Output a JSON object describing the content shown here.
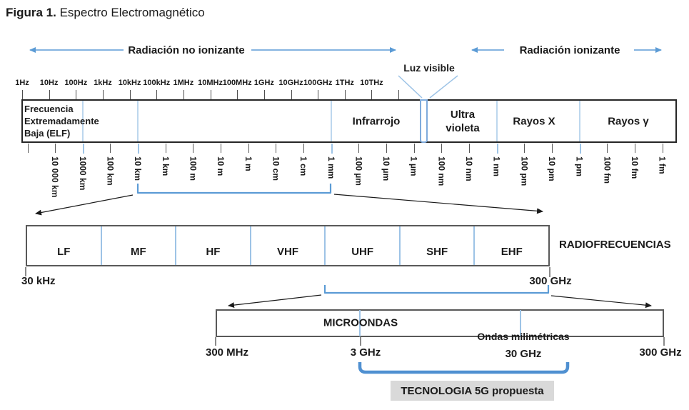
{
  "title": {
    "bold": "Figura 1.",
    "rest": " Espectro Electromagnético"
  },
  "arrows": {
    "non_ionizing": "Radiación no ionizante",
    "ionizing": "Radiación ionizante",
    "visible_light": "Luz visible"
  },
  "frequency_axis": {
    "labels": [
      "1Hz",
      "10Hz",
      "100Hz",
      "1kHz",
      "10kHz",
      "100kHz",
      "1MHz",
      "10MHz",
      "100MHz",
      "1GHz",
      "10GHz",
      "100GHz",
      "1THz",
      "10THz",
      ""
    ]
  },
  "spectrum_bar": {
    "elf_label": "Frecuencia\nExtremadamente\nBaja (ELF)",
    "infrared_label": "Infrarrojo",
    "uv_label": "Ultra\nvioleta",
    "xray_label": "Rayos X",
    "gamma_label": "Rayos γ"
  },
  "wavelength_axis": {
    "ticks": [
      {
        "label": "",
        "highlight": false
      },
      {
        "label": "10 000 km",
        "highlight": false
      },
      {
        "label": "1000 km",
        "highlight": true
      },
      {
        "label": "100 km",
        "highlight": false
      },
      {
        "label": "10 km",
        "highlight": true
      },
      {
        "label": "1 km",
        "highlight": false
      },
      {
        "label": "100 m",
        "highlight": false
      },
      {
        "label": "10 m",
        "highlight": false
      },
      {
        "label": "1 m",
        "highlight": false
      },
      {
        "label": "10 cm",
        "highlight": false
      },
      {
        "label": "1 cm",
        "highlight": false
      },
      {
        "label": "1 mm",
        "highlight": true
      },
      {
        "label": "100 µm",
        "highlight": false
      },
      {
        "label": "10 µm",
        "highlight": false
      },
      {
        "label": "1 µm",
        "highlight": false
      },
      {
        "label": "100 nm",
        "highlight": false
      },
      {
        "label": "10 nm",
        "highlight": false
      },
      {
        "label": "1 nm",
        "highlight": true
      },
      {
        "label": "100 pm",
        "highlight": false
      },
      {
        "label": "10 pm",
        "highlight": false
      },
      {
        "label": "1 pm",
        "highlight": true
      },
      {
        "label": "100 fm",
        "highlight": false
      },
      {
        "label": "10 fm",
        "highlight": false
      },
      {
        "label": "1 fm",
        "highlight": false
      }
    ]
  },
  "radio_bar": {
    "title": "RADIOFRECUENCIAS",
    "bands": [
      "LF",
      "MF",
      "HF",
      "VHF",
      "UHF",
      "SHF",
      "EHF"
    ],
    "min_label": "30 kHz",
    "max_label": "300 GHz"
  },
  "microwave_bar": {
    "title": "MICROONDAS",
    "mm_wave_label": "Ondas milimétricas",
    "tick_labels": [
      "300 MHz",
      "3 GHz",
      "30 GHz",
      "300 GHz"
    ]
  },
  "five_g": {
    "label": "TECNOLOGIA 5G propuesta"
  },
  "colors": {
    "accent_blue": "#5b9bd5",
    "light_blue": "#9dc3e6",
    "box_gray": "#d9d9d9"
  }
}
